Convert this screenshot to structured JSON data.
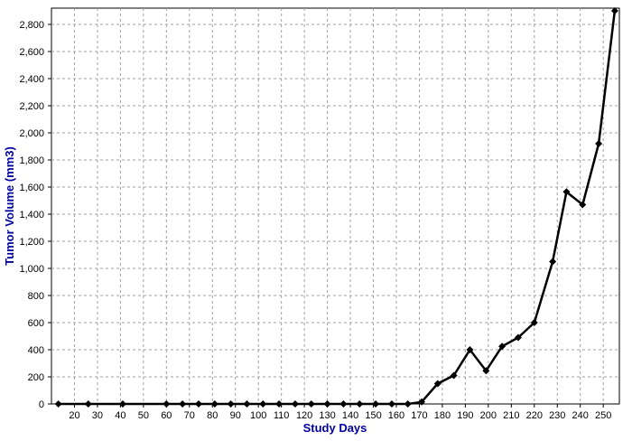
{
  "chart_data": {
    "type": "line",
    "xlabel": "Study Days",
    "ylabel": "Tumor Volume (mm3)",
    "xlim": [
      10,
      257
    ],
    "ylim": [
      0,
      2920
    ],
    "x_ticks": [
      20,
      30,
      40,
      50,
      60,
      70,
      80,
      90,
      100,
      110,
      120,
      130,
      140,
      150,
      160,
      170,
      180,
      190,
      200,
      210,
      220,
      230,
      240,
      250
    ],
    "y_ticks": [
      0,
      200,
      400,
      600,
      800,
      1000,
      1200,
      1400,
      1600,
      1800,
      2000,
      2200,
      2400,
      2600,
      2800
    ],
    "y_tick_labels": [
      "0",
      "200",
      "400",
      "600",
      "800",
      "1,000",
      "1,200",
      "1,400",
      "1,600",
      "1,800",
      "2,000",
      "2,200",
      "2,400",
      "2,600",
      "2,800"
    ],
    "grid": true,
    "legend": "none",
    "series": [
      {
        "color": "#000000",
        "marker": "diamond",
        "x": [
          13,
          26,
          41,
          60,
          67,
          74,
          81,
          88,
          95,
          102,
          109,
          116,
          123,
          130,
          137,
          144,
          151,
          158,
          165,
          171,
          178,
          185,
          192,
          199,
          206,
          213,
          220,
          228,
          234,
          241,
          248,
          255
        ],
        "y": [
          0,
          0,
          0,
          0,
          0,
          0,
          0,
          0,
          0,
          0,
          0,
          0,
          0,
          0,
          0,
          0,
          0,
          0,
          0,
          15,
          150,
          210,
          400,
          245,
          425,
          490,
          600,
          1050,
          1565,
          1470,
          1920,
          2900
        ]
      }
    ]
  },
  "colors": {
    "axis_title": "#0000a0",
    "line": "#000000",
    "grid": "#a0a0a0"
  }
}
